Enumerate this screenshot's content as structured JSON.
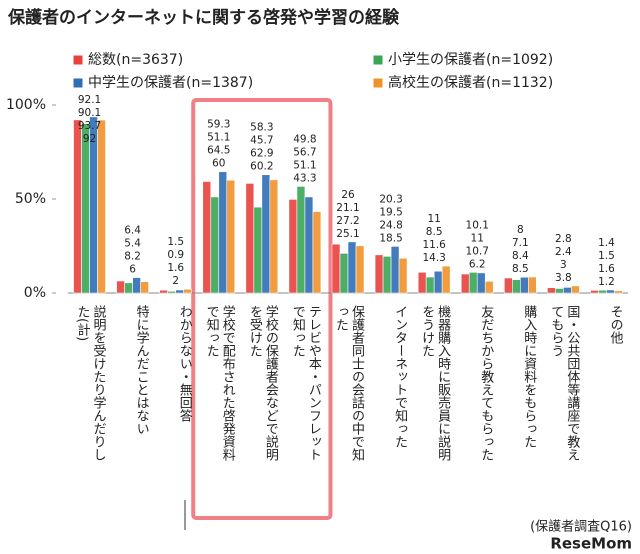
{
  "chart_data": {
    "type": "bar",
    "title": "保護者のインターネットに関する啓発や学習の経験",
    "categories": [
      "説明を受けたり学んだりした(計)",
      "特に学んだことはない",
      "わからない・無回答",
      "学校で配布された啓発資料で知った",
      "学校の保護者会などで説明を受けた",
      "テレビや本・パンフレットで知った",
      "保護者同士の会話の中で知った",
      "インターネットで知った",
      "機器購入時に販売員に説明をうけた",
      "友だちから教えてもらった",
      "購入時に資料をもらった",
      "国・公共団体等講座で教えてもらう",
      "その他"
    ],
    "series": [
      {
        "name": "総数(n=3637)",
        "color": "#e8413c",
        "values": [
          92.1,
          6.4,
          1.5,
          59.3,
          58.3,
          49.8,
          26.0,
          20.3,
          11.0,
          10.1,
          8.0,
          2.8,
          1.4
        ]
      },
      {
        "name": "小学生の保護者(n=1092)",
        "color": "#3aa655",
        "values": [
          90.1,
          5.4,
          0.9,
          51.1,
          45.7,
          56.7,
          21.1,
          19.5,
          8.5,
          11.0,
          7.1,
          2.4,
          1.5
        ]
      },
      {
        "name": "中学生の保護者(n=1387)",
        "color": "#2f6eb5",
        "values": [
          93.7,
          8.2,
          1.6,
          64.5,
          62.9,
          51.1,
          27.2,
          24.8,
          11.6,
          10.7,
          8.4,
          3.0,
          1.6
        ]
      },
      {
        "name": "高校生の保護者(n=1132)",
        "color": "#f0922b",
        "values": [
          92.0,
          6.0,
          2.0,
          60.0,
          60.2,
          43.3,
          25.1,
          18.5,
          14.3,
          6.2,
          8.5,
          3.8,
          1.2
        ]
      }
    ],
    "ylim": [
      0,
      100
    ],
    "yticks": [
      {
        "value": 0,
        "label": "0%"
      },
      {
        "value": 50,
        "label": "50%"
      },
      {
        "value": 100,
        "label": "100%"
      }
    ],
    "footnote": "(保護者調査Q16)",
    "watermark": "ReseMom"
  }
}
